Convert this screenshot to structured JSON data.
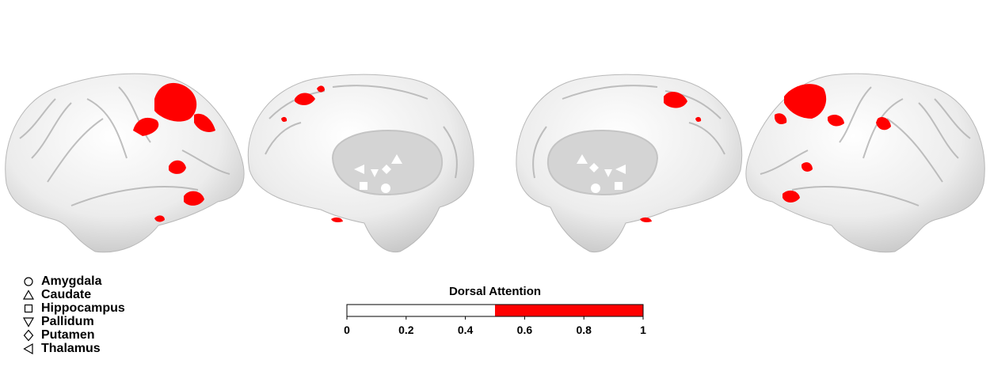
{
  "legend": [
    {
      "label": "Amygdala",
      "marker": "circle"
    },
    {
      "label": "Caudate",
      "marker": "triangle-up"
    },
    {
      "label": "Hippocampus",
      "marker": "square"
    },
    {
      "label": "Pallidum",
      "marker": "triangle-down"
    },
    {
      "label": "Putamen",
      "marker": "diamond"
    },
    {
      "label": "Thalamus",
      "marker": "triangle-left"
    }
  ],
  "colorbar": {
    "title": "Dorsal Attention",
    "min": 0,
    "max": 1,
    "ticks": [
      "0",
      "0.2",
      "0.4",
      "0.6",
      "0.8",
      "1"
    ],
    "threshold": 0.5,
    "low_color": "#ffffff",
    "high_color": "#ff0000"
  },
  "colors": {
    "cortex": "#e8e8e8",
    "highlight": "#ff0000",
    "subcortical_fill": "#d4d4d4"
  },
  "views": [
    "left-lateral",
    "left-medial",
    "right-medial",
    "right-lateral"
  ]
}
